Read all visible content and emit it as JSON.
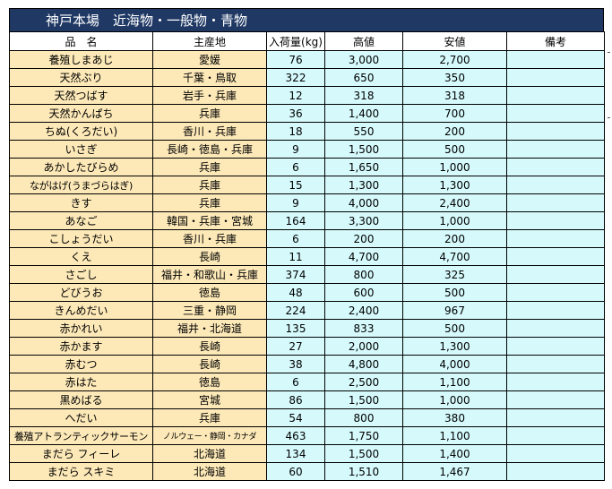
{
  "title": "神戸本場　近海物・一般物・青物",
  "headers": [
    "品　名",
    "主産地",
    "入荷量(kg)",
    "高値",
    "安値",
    "備考"
  ],
  "rows": [
    [
      "養殖しまあじ",
      "愛媛",
      "76",
      "3,000",
      "2,700",
      ""
    ],
    [
      "天然ぶり",
      "千葉・鳥取",
      "322",
      "650",
      "350",
      ""
    ],
    [
      "天然つばす",
      "岩手・兵庫",
      "12",
      "318",
      "318",
      ""
    ],
    [
      "天然かんぱち",
      "兵庫",
      "36",
      "1,400",
      "700",
      ""
    ],
    [
      "ちぬ(くろだい)",
      "香川・兵庫",
      "18",
      "550",
      "200",
      ""
    ],
    [
      "いさぎ",
      "長崎・徳島・兵庫",
      "9",
      "1,500",
      "500",
      ""
    ],
    [
      "あかしたびらめ",
      "兵庫",
      "6",
      "1,650",
      "1,000",
      ""
    ],
    [
      "ながはげ(うまづらはぎ)",
      "兵庫",
      "15",
      "1,300",
      "1,300",
      ""
    ],
    [
      "きす",
      "兵庫",
      "9",
      "4,000",
      "2,400",
      ""
    ],
    [
      "あなご",
      "韓国・兵庫・宮城",
      "164",
      "3,300",
      "1,000",
      ""
    ],
    [
      "こしょうだい",
      "香川・兵庫",
      "6",
      "200",
      "200",
      ""
    ],
    [
      "くえ",
      "長崎",
      "11",
      "4,700",
      "4,700",
      ""
    ],
    [
      "さごし",
      "福井・和歌山・兵庫",
      "374",
      "800",
      "325",
      ""
    ],
    [
      "どびうお",
      "徳島",
      "48",
      "600",
      "500",
      ""
    ],
    [
      "きんめだい",
      "三重・静岡",
      "224",
      "2,400",
      "967",
      ""
    ],
    [
      "赤かれい",
      "福井・北海道",
      "135",
      "833",
      "500",
      ""
    ],
    [
      "赤かます",
      "長崎",
      "27",
      "2,000",
      "1,300",
      ""
    ],
    [
      "赤むつ",
      "長崎",
      "38",
      "4,800",
      "4,000",
      ""
    ],
    [
      "赤はた",
      "徳島",
      "6",
      "2,500",
      "1,100",
      ""
    ],
    [
      "黒めばる",
      "宮城",
      "86",
      "1,500",
      "1,000",
      ""
    ],
    [
      "へだい",
      "兵庫",
      "54",
      "800",
      "380",
      ""
    ],
    [
      "養殖アトランティックサーモン",
      "ノルウェー・静岡・カナダ",
      "463",
      "1,750",
      "1,100",
      ""
    ],
    [
      "まだら フィーレ",
      "北海道",
      "134",
      "1,500",
      "1,400",
      ""
    ],
    [
      "まだら スキミ",
      "北海道",
      "60",
      "1,510",
      "1,467",
      ""
    ]
  ]
}
